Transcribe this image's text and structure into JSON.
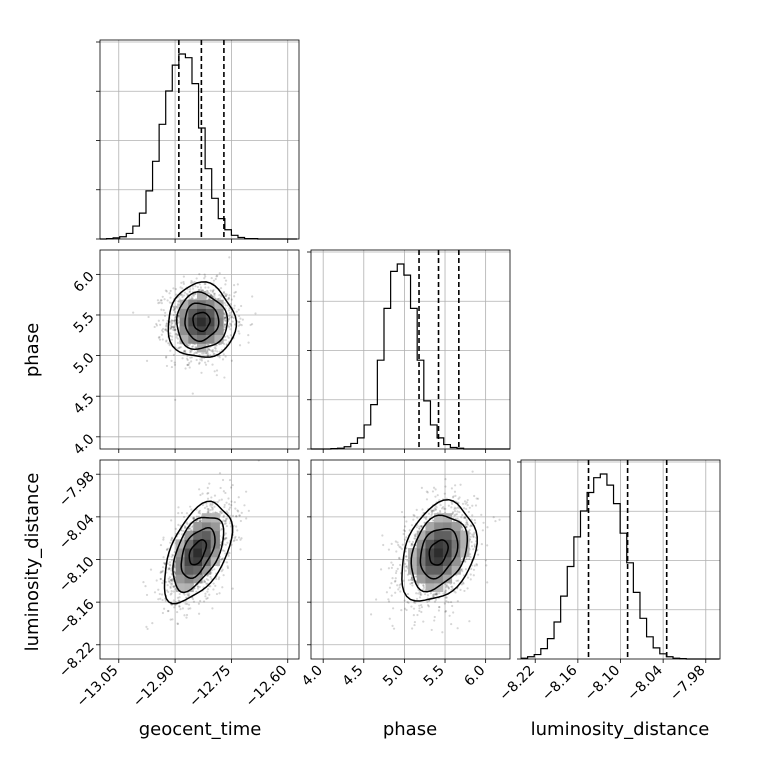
{
  "chart_data": {
    "type": "corner",
    "parameters": [
      {
        "name": "geocent_time",
        "range": [
          -13.1,
          -12.57
        ],
        "ticks": [
          -13.05,
          -12.9,
          -12.75,
          -12.6
        ],
        "tick_labels": [
          "−13.05",
          "−12.90",
          "−12.75",
          "−12.60"
        ],
        "quantiles": [
          -12.89,
          -12.83,
          -12.77
        ]
      },
      {
        "name": "phase",
        "range": [
          3.85,
          6.3
        ],
        "ticks": [
          4.0,
          4.5,
          5.0,
          5.5,
          6.0
        ],
        "tick_labels": [
          "4.0",
          "4.5",
          "5.0",
          "5.5",
          "6.0"
        ],
        "quantiles": [
          5.18,
          5.42,
          5.67
        ]
      },
      {
        "name": "luminosity_distance",
        "range": [
          -8.24,
          -7.96
        ],
        "ticks": [
          -8.22,
          -8.16,
          -8.1,
          -8.04,
          -7.98
        ],
        "tick_labels": [
          "−8.22",
          "−8.16",
          "−8.10",
          "−8.04",
          "−7.98"
        ],
        "quantiles": [
          -8.145,
          -8.09,
          -8.035
        ]
      }
    ],
    "histograms": [
      {
        "param": "geocent_time",
        "bin_start": -13.1,
        "bin_width": 0.0175,
        "counts": [
          0,
          1,
          3,
          6,
          15,
          35,
          70,
          130,
          210,
          310,
          400,
          470,
          500,
          490,
          420,
          300,
          190,
          110,
          55,
          25,
          10,
          4,
          1,
          1,
          0,
          0,
          0,
          0,
          0,
          0
        ]
      },
      {
        "param": "phase",
        "bin_start": 3.85,
        "bin_width": 0.0817,
        "counts": [
          0,
          0,
          0,
          1,
          2,
          6,
          15,
          30,
          65,
          120,
          240,
          380,
          480,
          500,
          470,
          380,
          240,
          130,
          65,
          30,
          12,
          4,
          2,
          0,
          0,
          0,
          0,
          0,
          0,
          0
        ]
      },
      {
        "param": "luminosity_distance",
        "bin_start": -8.24,
        "bin_width": 0.0093,
        "counts": [
          2,
          6,
          12,
          28,
          55,
          100,
          170,
          250,
          330,
          400,
          450,
          490,
          500,
          470,
          420,
          340,
          260,
          180,
          110,
          60,
          30,
          14,
          6,
          2,
          1,
          0,
          0,
          0,
          0,
          0
        ]
      }
    ],
    "joint": [
      {
        "x": "geocent_time",
        "y": "phase",
        "mean": [
          -12.83,
          5.42
        ],
        "std": [
          0.045,
          0.23
        ],
        "corr": 0.0
      },
      {
        "x": "geocent_time",
        "y": "luminosity_distance",
        "mean": [
          -12.84,
          -8.09
        ],
        "std": [
          0.045,
          0.035
        ],
        "corr": 0.5
      },
      {
        "x": "phase",
        "y": "luminosity_distance",
        "mean": [
          5.42,
          -8.09
        ],
        "std": [
          0.23,
          0.035
        ],
        "corr": 0.3
      }
    ],
    "contour_levels_sigma": [
      0.5,
      1.0,
      1.5,
      2.0
    ],
    "grid": true,
    "legend": "none"
  }
}
